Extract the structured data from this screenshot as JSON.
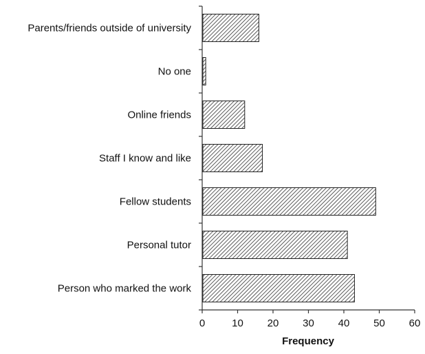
{
  "chart_data": {
    "type": "bar",
    "orientation": "horizontal",
    "categories": [
      "Parents/friends outside of university",
      "No one",
      "Online friends",
      "Staff I know and like",
      "Fellow students",
      "Personal tutor",
      "Person who marked the work"
    ],
    "values": [
      16,
      1,
      12,
      17,
      49,
      41,
      43
    ],
    "title": "",
    "xlabel": "Frequency",
    "ylabel": "",
    "xlim": [
      0,
      60
    ],
    "xticks": [
      "0",
      "10",
      "20",
      "30",
      "40",
      "50",
      "60"
    ],
    "grid": false,
    "legend": "none",
    "bar_fill": "hatched",
    "colors": {
      "bar_stroke": "#222222",
      "hatch": "#333333",
      "axis": "#333333"
    }
  }
}
